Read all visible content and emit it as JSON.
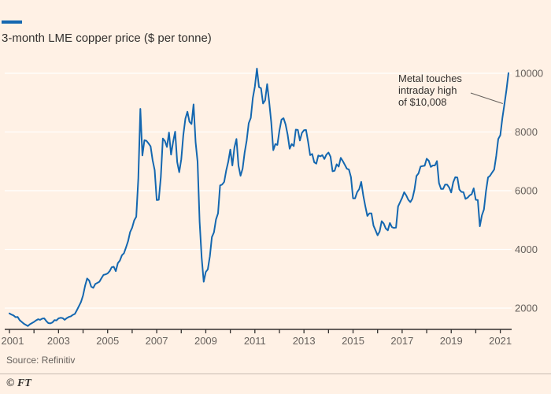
{
  "chart_data": {
    "type": "line",
    "title": "3-month LME copper price ($ per tonne)",
    "series_name": "3-month LME copper price",
    "x_start_year": 2001,
    "x_step_months": 1,
    "values": [
      1820,
      1780,
      1750,
      1690,
      1700,
      1590,
      1530,
      1470,
      1430,
      1390,
      1450,
      1490,
      1530,
      1580,
      1620,
      1600,
      1640,
      1650,
      1560,
      1490,
      1480,
      1510,
      1590,
      1580,
      1650,
      1670,
      1660,
      1600,
      1660,
      1700,
      1720,
      1770,
      1800,
      1930,
      2070,
      2210,
      2430,
      2760,
      3010,
      2940,
      2730,
      2690,
      2820,
      2860,
      2900,
      3020,
      3130,
      3150,
      3180,
      3260,
      3390,
      3410,
      3260,
      3530,
      3620,
      3800,
      3870,
      4070,
      4280,
      4590,
      4740,
      4990,
      5110,
      6400,
      8790,
      7200,
      7720,
      7700,
      7610,
      7510,
      7040,
      6700,
      5680,
      5690,
      6460,
      7780,
      7690,
      7490,
      7980,
      7230,
      7660,
      8010,
      6980,
      6630,
      7070,
      7900,
      8450,
      8690,
      8350,
      8270,
      8940,
      7650,
      6990,
      4940,
      3720,
      2900,
      3230,
      3320,
      3760,
      4420,
      4580,
      5020,
      5230,
      6180,
      6210,
      6300,
      6690,
      6990,
      7400,
      6860,
      7470,
      7760,
      6850,
      6510,
      6750,
      7300,
      7710,
      8300,
      8480,
      9160,
      9550,
      10160,
      9530,
      9490,
      8970,
      9080,
      9630,
      9020,
      8330,
      7380,
      7590,
      7560,
      8050,
      8420,
      8470,
      8260,
      7910,
      7430,
      7590,
      7520,
      8080,
      8070,
      7710,
      7970,
      8060,
      8070,
      7670,
      7210,
      7250,
      6970,
      6920,
      7200,
      7170,
      7210,
      7080,
      7230,
      7300,
      7160,
      6660,
      6680,
      6900,
      6820,
      7120,
      7010,
      6880,
      6750,
      6720,
      6460,
      5740,
      5740,
      5950,
      6050,
      6300,
      5840,
      5470,
      5140,
      5230,
      5230,
      4810,
      4650,
      4480,
      4610,
      4960,
      4880,
      4710,
      4650,
      4900,
      4760,
      4730,
      4740,
      5460,
      5610,
      5760,
      5950,
      5840,
      5690,
      5610,
      5730,
      6030,
      6500,
      6590,
      6820,
      6840,
      6850,
      7090,
      7020,
      6810,
      6860,
      6860,
      7010,
      6260,
      6060,
      6060,
      6210,
      6210,
      6110,
      5940,
      6290,
      6460,
      6450,
      6040,
      5960,
      5950,
      5720,
      5760,
      5840,
      5880,
      6080,
      5690,
      5680,
      4790,
      5160,
      5360,
      5980,
      6450,
      6510,
      6620,
      6720,
      7180,
      7760,
      7890,
      8470,
      8940,
      9430,
      10008
    ],
    "y_ticks": [
      2000,
      4000,
      6000,
      8000,
      10000
    ],
    "x_tick_years": [
      2001,
      2002,
      2003,
      2004,
      2005,
      2006,
      2007,
      2008,
      2009,
      2010,
      2011,
      2012,
      2013,
      2014,
      2015,
      2016,
      2017,
      2018,
      2019,
      2020,
      2021
    ],
    "x_label_years": [
      2001,
      2003,
      2005,
      2007,
      2009,
      2011,
      2013,
      2015,
      2017,
      2019,
      2021
    ],
    "ylim": [
      1275,
      10400
    ],
    "grid": "horizontal",
    "legend_position": "none",
    "annotation": {
      "lines": [
        "Metal touches",
        "intraday high",
        "of $10,008"
      ],
      "value": 10008
    },
    "colors": {
      "line": "#1467b0",
      "background": "#fff1e5",
      "grid": "#ffffff",
      "axis": "#33302e",
      "text": "#66605c"
    }
  },
  "footer": {
    "source": "Source: Refinitiv",
    "logo": "© FT"
  }
}
